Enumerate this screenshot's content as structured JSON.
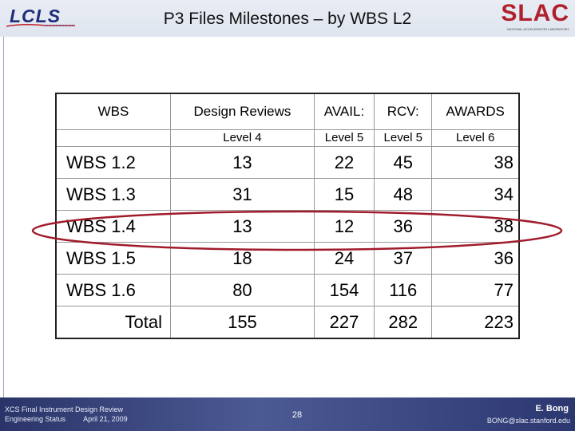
{
  "header": {
    "title": "P3 Files Milestones – by WBS L2",
    "logo_left": "LCLS",
    "logo_right": "SLAC",
    "logo_right_sub": "NATIONAL ACCELERATOR LABORATORY"
  },
  "table": {
    "headers": [
      {
        "top": "WBS",
        "level": ""
      },
      {
        "top": "Design Reviews",
        "level": "Level 4"
      },
      {
        "top": "AVAIL:",
        "level": "Level 5"
      },
      {
        "top": "RCV:",
        "level": "Level 5"
      },
      {
        "top": "AWARDS",
        "level": "Level 6"
      }
    ],
    "rows": [
      [
        "WBS 1.2",
        "13",
        "22",
        "45",
        "38"
      ],
      [
        "WBS 1.3",
        "31",
        "15",
        "48",
        "34"
      ],
      [
        "WBS 1.4",
        "13",
        "12",
        "36",
        "38"
      ],
      [
        "WBS 1.5",
        "18",
        "24",
        "37",
        "36"
      ],
      [
        "WBS 1.6",
        "80",
        "154",
        "116",
        "77"
      ]
    ],
    "total": [
      "Total",
      "155",
      "227",
      "282",
      "223"
    ],
    "highlighted_row": "WBS 1.4"
  },
  "colors": {
    "highlight": "#a01c2c",
    "footer": "#3a4680",
    "brand_slac": "#b0202b",
    "brand_lcls": "#1f2d7a"
  },
  "footer": {
    "line1": "XCS Final Instrument Design Review",
    "line2": "Engineering Status",
    "date": "April 21, 2009",
    "page": "28",
    "author": "E. Bong",
    "email": "BONG@slac.stanford.edu"
  }
}
